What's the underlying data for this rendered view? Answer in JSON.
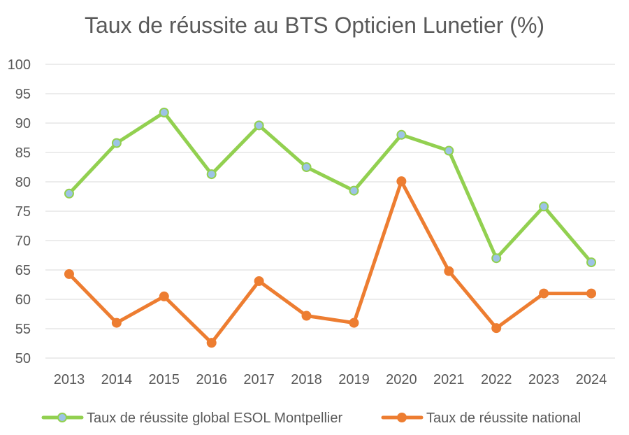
{
  "chart_data": {
    "type": "line",
    "title": "Taux de réussite au BTS Opticien Lunetier (%)",
    "xlabel": "",
    "ylabel": "",
    "categories": [
      "2013",
      "2014",
      "2015",
      "2016",
      "2017",
      "2018",
      "2019",
      "2020",
      "2021",
      "2022",
      "2023",
      "2024"
    ],
    "ylim": [
      50,
      100
    ],
    "yticks": [
      "50",
      "55",
      "60",
      "65",
      "70",
      "75",
      "80",
      "85",
      "90",
      "95",
      "100"
    ],
    "grid": true,
    "legend_position": "bottom",
    "series": [
      {
        "name": "Taux de réussite global ESOL Montpellier",
        "color": "#92D050",
        "marker_fill": "#9DC3E6",
        "values": [
          78,
          86.6,
          91.8,
          81.3,
          89.6,
          82.5,
          78.5,
          88,
          85.3,
          67,
          75.8,
          66.3
        ]
      },
      {
        "name": "Taux de réussite national",
        "color": "#ED7D31",
        "marker_fill": "#ED7D31",
        "values": [
          64.3,
          56,
          60.5,
          52.6,
          63.1,
          57.2,
          56,
          80.1,
          64.8,
          55.1,
          61,
          61
        ]
      }
    ]
  }
}
